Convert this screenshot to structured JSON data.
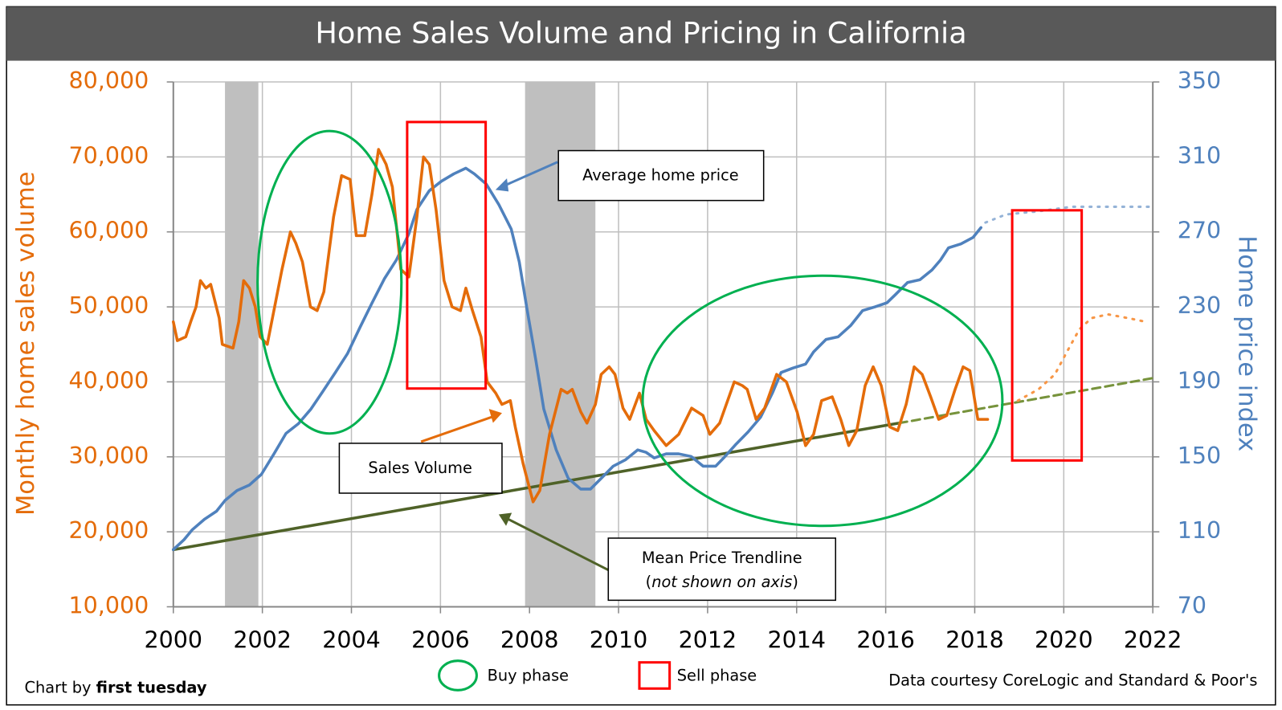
{
  "chart_data": {
    "type": "line",
    "title": "Home Sales Volume and Pricing in California",
    "ylabel": "Monthly home sales volume",
    "y2label": "Home price index",
    "xlim": [
      2000,
      2022
    ],
    "xticks": [
      2000,
      2002,
      2004,
      2006,
      2008,
      2010,
      2012,
      2014,
      2016,
      2018,
      2020,
      2022
    ],
    "ylim": [
      10000,
      80000
    ],
    "yticks": [
      {
        "value": 10000,
        "label": "10,000"
      },
      {
        "value": 20000,
        "label": "20,000"
      },
      {
        "value": 30000,
        "label": "30,000"
      },
      {
        "value": 40000,
        "label": "40,000"
      },
      {
        "value": 50000,
        "label": "50,000"
      },
      {
        "value": 60000,
        "label": "60,000"
      },
      {
        "value": 70000,
        "label": "70,000"
      },
      {
        "value": 80000,
        "label": "80,000"
      }
    ],
    "y2lim": [
      70,
      350
    ],
    "y2ticks": [
      70,
      110,
      150,
      190,
      230,
      270,
      310,
      350
    ],
    "grid": true,
    "shaded_periods": [
      [
        2001.16,
        2001.91
      ],
      [
        2007.9,
        2009.48
      ]
    ],
    "shade_color": "#bfbfbf",
    "series": [
      {
        "name": "Sales Volume",
        "color": "#e46c0a",
        "style": "solid",
        "x": [
          2000.0,
          2000.09,
          2000.28,
          2000.39,
          2000.51,
          2000.61,
          2000.73,
          2000.84,
          2001.03,
          2001.1,
          2001.34,
          2001.47,
          2001.58,
          2001.71,
          2001.84,
          2001.95,
          2002.11,
          2002.44,
          2002.63,
          2002.75,
          2002.9,
          2003.08,
          2003.23,
          2003.38,
          2003.6,
          2003.78,
          2003.97,
          2004.11,
          2004.3,
          2004.46,
          2004.61,
          2004.78,
          2004.92,
          2005.11,
          2005.29,
          2005.47,
          2005.62,
          2005.75,
          2005.9,
          2006.08,
          2006.26,
          2006.45,
          2006.57,
          2006.72,
          2006.91,
          2007.05,
          2007.24,
          2007.38,
          2007.57,
          2007.68,
          2007.86,
          2008.08,
          2008.23,
          2008.45,
          2008.71,
          2008.85,
          2008.96,
          2009.15,
          2009.29,
          2009.48,
          2009.61,
          2009.79,
          2009.92,
          2010.1,
          2010.25,
          2010.47,
          2010.62,
          2010.8,
          2011.07,
          2011.35,
          2011.64,
          2011.9,
          2012.05,
          2012.27,
          2012.6,
          2012.78,
          2012.89,
          2013.09,
          2013.28,
          2013.55,
          2013.77,
          2014.01,
          2014.2,
          2014.38,
          2014.56,
          2014.8,
          2014.99,
          2015.17,
          2015.35,
          2015.54,
          2015.72,
          2015.9,
          2016.09,
          2016.27,
          2016.46,
          2016.64,
          2016.82,
          2017.01,
          2017.19,
          2017.37,
          2017.56,
          2017.74,
          2017.89,
          2018.07,
          2018.29
        ],
        "values": [
          48000,
          45500,
          46000,
          48000,
          50000,
          53500,
          52500,
          53000,
          48500,
          45000,
          44500,
          48000,
          53500,
          52500,
          50000,
          46000,
          45000,
          55000,
          60000,
          58500,
          56000,
          50000,
          49500,
          52000,
          62000,
          67500,
          67000,
          59500,
          59500,
          65000,
          71000,
          69000,
          66000,
          55000,
          54000,
          62000,
          70000,
          69000,
          63000,
          53500,
          50000,
          49500,
          52500,
          49500,
          46000,
          40000,
          38500,
          37000,
          37500,
          34000,
          29000,
          24000,
          25500,
          33000,
          39000,
          38500,
          39000,
          36000,
          34500,
          37000,
          41000,
          42000,
          41000,
          36500,
          35000,
          38500,
          35000,
          33500,
          31500,
          33000,
          36500,
          35500,
          33000,
          34500,
          40000,
          39500,
          39000,
          35000,
          36500,
          41000,
          40000,
          36000,
          31500,
          33000,
          37500,
          38000,
          35000,
          31500,
          33500,
          39500,
          42000,
          39500,
          34000,
          33500,
          37000,
          42000,
          41000,
          38000,
          35000,
          35500,
          39000,
          42000,
          41500,
          35000,
          35000
        ]
      },
      {
        "color": "#f79646",
        "style": "dotted",
        "x": [
          2018.97,
          2019.43,
          2019.8,
          2020.07,
          2020.35,
          2020.62,
          2020.99,
          2021.45,
          2021.85
        ],
        "values": [
          37500,
          39000,
          41000,
          44000,
          47000,
          48500,
          49000,
          48500,
          48000
        ]
      },
      {
        "name": "Average home price",
        "color": "#4f81bd",
        "style": "solid",
        "axis": "y2",
        "x": [
          2000.0,
          2000.24,
          2000.42,
          2000.7,
          2000.97,
          2001.16,
          2001.43,
          2001.71,
          2001.98,
          2002.26,
          2002.53,
          2002.81,
          2003.09,
          2003.36,
          2003.64,
          2003.91,
          2004.19,
          2004.46,
          2004.74,
          2005.01,
          2005.29,
          2005.47,
          2005.75,
          2006.02,
          2006.3,
          2006.57,
          2006.76,
          2007.03,
          2007.31,
          2007.59,
          2007.77,
          2007.95,
          2008.14,
          2008.32,
          2008.6,
          2008.87,
          2009.15,
          2009.37,
          2009.61,
          2009.88,
          2010.16,
          2010.43,
          2010.62,
          2010.8,
          2011.07,
          2011.35,
          2011.63,
          2011.9,
          2012.18,
          2012.36,
          2012.64,
          2012.91,
          2013.19,
          2013.46,
          2013.65,
          2013.92,
          2014.2,
          2014.38,
          2014.66,
          2014.93,
          2015.21,
          2015.48,
          2015.76,
          2016.03,
          2016.22,
          2016.49,
          2016.77,
          2017.04,
          2017.23,
          2017.41,
          2017.69,
          2017.96,
          2018.14
        ],
        "values": [
          100.5,
          105.8,
          111,
          116.7,
          121,
          126.7,
          132,
          135,
          140.7,
          151.6,
          162.5,
          167.7,
          175.5,
          185,
          195,
          205,
          219,
          232,
          245,
          255,
          269,
          282,
          292,
          297,
          301,
          304,
          301,
          295.5,
          284.6,
          271.5,
          254,
          228,
          201.7,
          175.5,
          153.7,
          138.5,
          132.8,
          132.8,
          138.5,
          145,
          148.5,
          153.7,
          152.4,
          149.4,
          151.6,
          151.6,
          150.2,
          145,
          145,
          149.4,
          156.8,
          163.3,
          171.2,
          184.3,
          195,
          197.4,
          199.5,
          206,
          212.6,
          214,
          220,
          228,
          230,
          232.2,
          236.6,
          243,
          244.5,
          249.7,
          255,
          261.5,
          263.6,
          267,
          272.3
        ]
      },
      {
        "color": "#95b3d7",
        "style": "dotted",
        "axis": "y2",
        "x": [
          2018.24,
          2018.7,
          2019.43,
          2020.17,
          2021.08,
          2021.91
        ],
        "values": [
          275,
          279.3,
          281,
          283.4,
          283.4,
          283.4
        ]
      },
      {
        "name": "Mean Price Trendline",
        "color": "#4f6228",
        "style": "solid",
        "axis": "y2",
        "x": [
          2000.0,
          2016.3
        ],
        "values": [
          100.5,
          168
        ]
      },
      {
        "color": "#77933c",
        "style": "dashed",
        "axis": "y2",
        "x": [
          2016.3,
          2022.0
        ],
        "values": [
          168,
          192
        ]
      }
    ],
    "annotation_note": [
      "(",
      "not shown on axis",
      ")"
    ],
    "legend": [
      "Buy phase",
      "Sell phase"
    ],
    "credit": [
      "Chart by ",
      "first tuesday"
    ],
    "source": "Data courtesy CoreLogic and Standard & Poor's"
  }
}
